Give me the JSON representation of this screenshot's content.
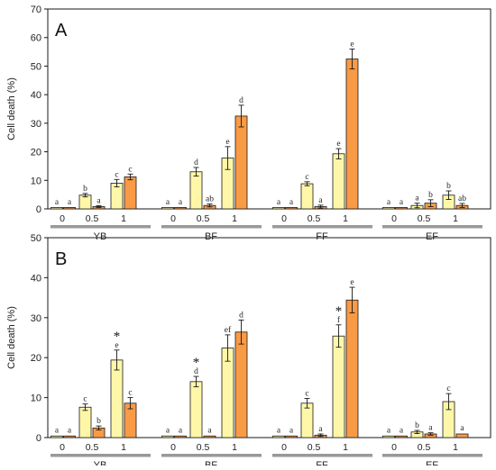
{
  "colors": {
    "light": "#FFF7A8",
    "dark": "#F99A45",
    "stroke": "#1a1a1a",
    "group_bar": "#999999"
  },
  "chart_data": [
    {
      "type": "bar",
      "panel_label": "A",
      "ylabel": "Cell death (%)",
      "ylim": [
        0,
        70
      ],
      "yticks": [
        0,
        10,
        20,
        30,
        40,
        50,
        60,
        70
      ],
      "grid": false,
      "groups": [
        "YB",
        "BF",
        "FF",
        "EF"
      ],
      "doses": [
        "0",
        "0.5",
        "1"
      ],
      "series": [
        {
          "values": [
            [
              0.5,
              4.8,
              9.0
            ],
            [
              0.5,
              13.0,
              17.8
            ],
            [
              0.5,
              8.8,
              19.3
            ],
            [
              0.5,
              1.2,
              4.8
            ]
          ],
          "errors": [
            [
              0.2,
              0.6,
              1.3
            ],
            [
              0.2,
              1.5,
              4.0
            ],
            [
              0.2,
              0.7,
              1.8
            ],
            [
              0.2,
              0.8,
              1.5
            ]
          ],
          "letters": [
            [
              "a",
              "b",
              "c"
            ],
            [
              "a",
              "d",
              "e"
            ],
            [
              "a",
              "c",
              "e"
            ],
            [
              "a",
              "a",
              "b"
            ]
          ],
          "stars": [
            [
              false,
              false,
              false
            ],
            [
              false,
              false,
              false
            ],
            [
              false,
              false,
              false
            ],
            [
              false,
              false,
              false
            ]
          ]
        },
        {
          "values": [
            [
              0.5,
              0.8,
              11.2
            ],
            [
              0.5,
              1.2,
              32.5
            ],
            [
              0.5,
              0.8,
              52.5
            ],
            [
              0.5,
              2.0,
              1.2
            ]
          ],
          "errors": [
            [
              0.2,
              0.3,
              1.0
            ],
            [
              0.2,
              0.5,
              3.8
            ],
            [
              0.2,
              0.5,
              3.5
            ],
            [
              0.2,
              1.2,
              0.7
            ]
          ],
          "letters": [
            [
              "a",
              "a",
              "c"
            ],
            [
              "a",
              "ab",
              "d"
            ],
            [
              "a",
              "a",
              "e"
            ],
            [
              "a",
              "b",
              "ab"
            ]
          ],
          "stars": [
            [
              false,
              false,
              false
            ],
            [
              false,
              false,
              false
            ],
            [
              false,
              false,
              false
            ],
            [
              false,
              false,
              false
            ]
          ]
        }
      ]
    },
    {
      "type": "bar",
      "panel_label": "B",
      "ylabel": "Cell death (%)",
      "ylim": [
        0,
        50
      ],
      "yticks": [
        0,
        10,
        20,
        30,
        40,
        50
      ],
      "grid": false,
      "groups": [
        "YB",
        "BF",
        "FF",
        "EF"
      ],
      "doses": [
        "0",
        "0.5",
        "1"
      ],
      "series": [
        {
          "values": [
            [
              0.4,
              7.6,
              19.4
            ],
            [
              0.4,
              14.0,
              22.4
            ],
            [
              0.4,
              8.6,
              25.4
            ],
            [
              0.4,
              1.4,
              9.0
            ]
          ],
          "errors": [
            [
              0.2,
              0.8,
              2.5
            ],
            [
              0.2,
              1.3,
              3.3
            ],
            [
              0.2,
              1.2,
              2.8
            ],
            [
              0.2,
              0.4,
              2.0
            ]
          ],
          "letters": [
            [
              "a",
              "c",
              "e"
            ],
            [
              "a",
              "d",
              "ef"
            ],
            [
              "a",
              "c",
              "f"
            ],
            [
              "a",
              "b",
              "c"
            ]
          ],
          "stars": [
            [
              false,
              false,
              true
            ],
            [
              false,
              true,
              false
            ],
            [
              false,
              false,
              true
            ],
            [
              false,
              false,
              false
            ]
          ]
        },
        {
          "values": [
            [
              0.4,
              2.4,
              8.6
            ],
            [
              0.4,
              0.4,
              26.4
            ],
            [
              0.4,
              0.6,
              34.4
            ],
            [
              0.4,
              0.9,
              0.9
            ]
          ],
          "errors": [
            [
              0.2,
              0.5,
              1.4
            ],
            [
              0.2,
              0.2,
              3.0
            ],
            [
              0.2,
              0.3,
              3.2
            ],
            [
              0.2,
              0.3,
              0.2
            ]
          ],
          "letters": [
            [
              "a",
              "b",
              "c"
            ],
            [
              "a",
              "a",
              "d"
            ],
            [
              "a",
              "a",
              "e"
            ],
            [
              "a",
              "a",
              "a"
            ]
          ],
          "stars": [
            [
              false,
              false,
              false
            ],
            [
              false,
              false,
              false
            ],
            [
              false,
              false,
              false
            ],
            [
              false,
              false,
              false
            ]
          ]
        }
      ]
    }
  ]
}
